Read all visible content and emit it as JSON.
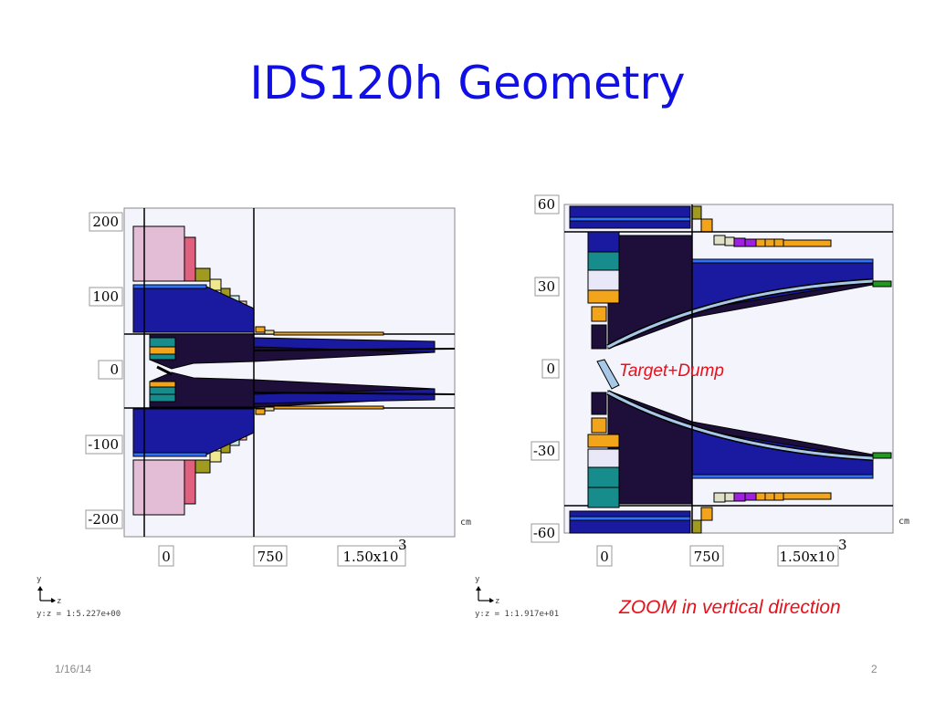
{
  "slide": {
    "title": "IDS120h Geometry",
    "date": "1/16/14",
    "page_number": "2"
  },
  "left_view": {
    "y_ticks": [
      "200",
      "100",
      "0",
      "-100",
      "-200"
    ],
    "z_ticks": [
      "0",
      "750",
      "1.50x10"
    ],
    "z_exponent": "3",
    "unit": "cm",
    "axis_y": "y",
    "axis_z": "z",
    "scale_ratio": "y:z = 1:5.227e+00"
  },
  "right_view": {
    "y_ticks": [
      "60",
      "30",
      "0",
      "-30",
      "-60"
    ],
    "z_ticks": [
      "0",
      "750",
      "1.50x10"
    ],
    "z_exponent": "3",
    "unit": "cm",
    "axis_y": "y",
    "axis_z": "z",
    "scale_ratio": "y:z = 1:1.917e+01",
    "label_target": "Target+Dump"
  },
  "annotations": {
    "zoom_note": "ZOOM in vertical direction"
  },
  "colors": {
    "title": "#1010e6",
    "annotation": "#e8101a",
    "background_panel": "#f4f4fc",
    "shielding_dark": "#1e0e3a",
    "coil_blue": "#1a1aa0",
    "pink": "#e3bcd6",
    "teal": "#168c8c",
    "orange": "#f2a51a",
    "olive": "#a09a20",
    "purple": "#a020e0",
    "green": "#1f9a1f"
  }
}
